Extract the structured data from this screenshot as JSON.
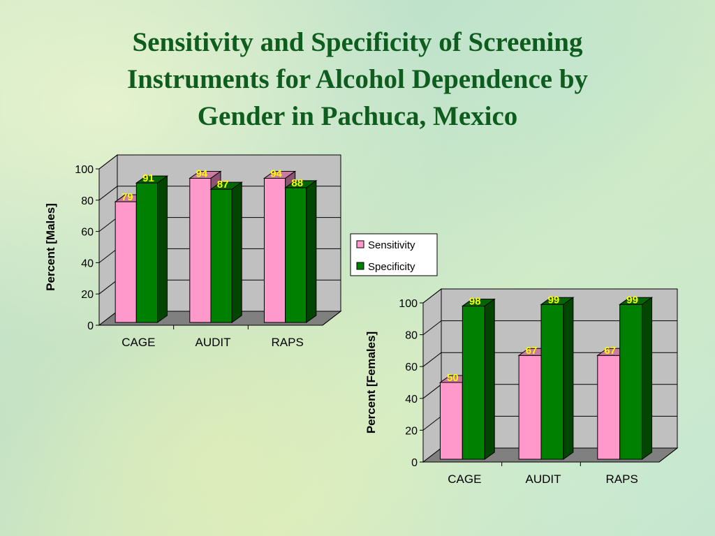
{
  "title_lines": [
    "Sensitivity and Specificity of Screening",
    "Instruments for Alcohol Dependence by",
    "Gender in Pachuca, Mexico"
  ],
  "colors": {
    "sensitivity": "#ff99cc",
    "specificity": "#008000",
    "title": "#0f5d1e",
    "data_label": "#ffff00"
  },
  "legend": {
    "items": [
      "Sensitivity",
      "Specificity"
    ]
  },
  "chart_data": [
    {
      "type": "bar",
      "title": "",
      "ylabel": "Percent [Males]",
      "ylim": [
        0,
        100
      ],
      "yticks": [
        "0",
        "20",
        "40",
        "60",
        "80",
        "100"
      ],
      "categories": [
        "CAGE",
        "AUDIT",
        "RAPS"
      ],
      "series": [
        {
          "name": "Sensitivity",
          "values": [
            79,
            94,
            94
          ]
        },
        {
          "name": "Specificity",
          "values": [
            91,
            87,
            88
          ]
        }
      ],
      "grid": true
    },
    {
      "type": "bar",
      "title": "",
      "ylabel": "Percent [Females]",
      "ylim": [
        0,
        100
      ],
      "yticks": [
        "0",
        "20",
        "40",
        "60",
        "80",
        "100"
      ],
      "categories": [
        "CAGE",
        "AUDIT",
        "RAPS"
      ],
      "series": [
        {
          "name": "Sensitivity",
          "values": [
            50,
            67,
            67
          ]
        },
        {
          "name": "Specificity",
          "values": [
            98,
            99,
            99
          ]
        }
      ],
      "grid": true
    }
  ]
}
